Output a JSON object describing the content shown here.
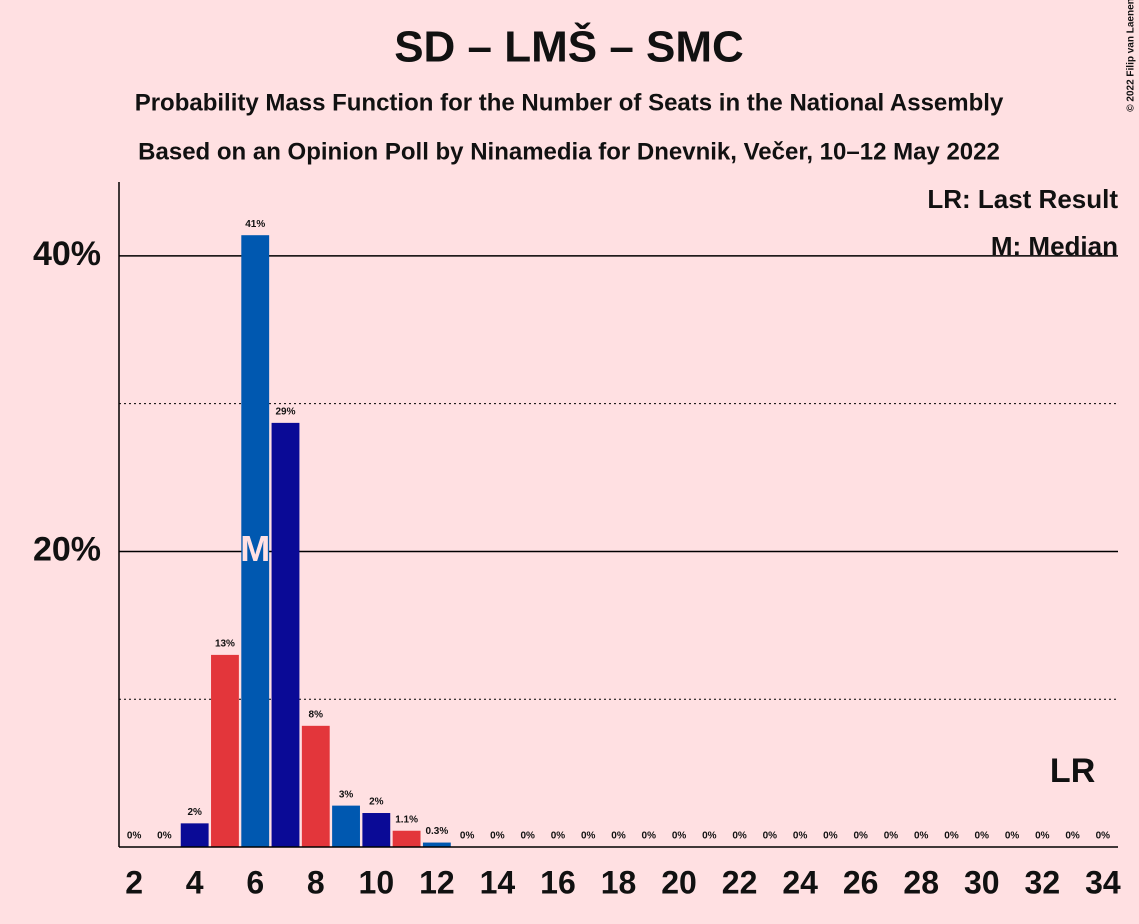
{
  "chart_data": {
    "type": "bar",
    "title": "SD – LMŠ – SMC",
    "subtitle": "Probability Mass Function for the Number of Seats in the National Assembly",
    "subtitle2": "Based on an Opinion Poll by Ninamedia for Dnevnik, Večer, 10–12 May 2022",
    "copyright": "© 2022 Filip van Laenen",
    "legend": [
      "LR: Last Result",
      "M: Median"
    ],
    "x": [
      2,
      3,
      4,
      5,
      6,
      7,
      8,
      9,
      10,
      11,
      12,
      13,
      14,
      15,
      16,
      17,
      18,
      19,
      20,
      21,
      22,
      23,
      24,
      25,
      26,
      27,
      28,
      29,
      30,
      31,
      32,
      33,
      34
    ],
    "values": [
      0,
      0,
      1.6,
      13,
      41.4,
      28.7,
      8.2,
      2.8,
      2.3,
      1.1,
      0.3,
      0,
      0,
      0,
      0,
      0,
      0,
      0,
      0,
      0,
      0,
      0,
      0,
      0,
      0,
      0,
      0,
      0,
      0,
      0,
      0,
      0,
      0
    ],
    "value_labels": [
      "0%",
      "0%",
      "2%",
      "13%",
      "41%",
      "29%",
      "8%",
      "3%",
      "2%",
      "1.1%",
      "0.3%",
      "0%",
      "0%",
      "0%",
      "0%",
      "0%",
      "0%",
      "0%",
      "0%",
      "0%",
      "0%",
      "0%",
      "0%",
      "0%",
      "0%",
      "0%",
      "0%",
      "0%",
      "0%",
      "0%",
      "0%",
      "0%",
      "0%"
    ],
    "colors": [
      "#e3363b",
      "#0058b0",
      "#0a0a96",
      "#e3363b",
      "#0058b0",
      "#0a0a96",
      "#e3363b",
      "#0058b0",
      "#0a0a96",
      "#e3363b",
      "#0058b0",
      "#0a0a96",
      "#e3363b",
      "#0058b0",
      "#0a0a96",
      "#e3363b",
      "#0058b0",
      "#0a0a96",
      "#e3363b",
      "#0058b0",
      "#0a0a96",
      "#e3363b",
      "#0058b0",
      "#0a0a96",
      "#e3363b",
      "#0058b0",
      "#0a0a96",
      "#e3363b",
      "#0058b0",
      "#0a0a96",
      "#e3363b",
      "#0058b0",
      "#0a0a96"
    ],
    "xlim": [
      1.5,
      34.5
    ],
    "xticks": [
      2,
      4,
      6,
      8,
      10,
      12,
      14,
      16,
      18,
      20,
      22,
      24,
      26,
      28,
      30,
      32,
      34
    ],
    "ylim": [
      0,
      45
    ],
    "yticks": [
      {
        "value": 20,
        "label": "20%"
      },
      {
        "value": 40,
        "label": "40%"
      }
    ],
    "minor_yticks": [
      10,
      30
    ],
    "grid": true,
    "annotations": [
      {
        "text": "M",
        "x": 6,
        "y": 20
      },
      {
        "text": "LR",
        "x": 33,
        "y": 5
      }
    ]
  }
}
